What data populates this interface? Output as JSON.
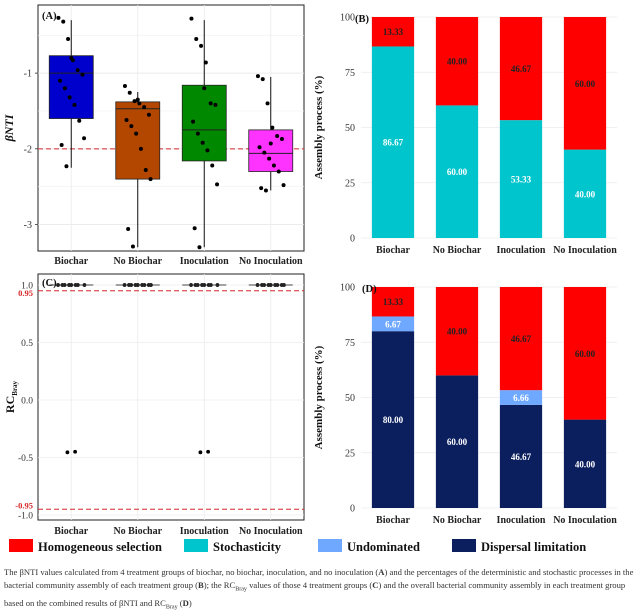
{
  "colors": {
    "homogeneous": "#ff0000",
    "stochasticity": "#00c5cd",
    "undominated": "#6fa8ff",
    "dispersal": "#0b1f5e",
    "dashed": "#d62728"
  },
  "chart_data": [
    {
      "panel": "(A)",
      "type": "box",
      "ylabel": "βNTI",
      "categories": [
        "Biochar",
        "No Biochar",
        "Inoculation",
        "No Inoculation"
      ],
      "yticks": [
        "-1",
        "-2",
        "-3"
      ],
      "ylim": [
        -3.35,
        -0.1
      ],
      "reference_line": -2,
      "box_colors": [
        "#0000cc",
        "#b34700",
        "#008800",
        "#ff33ff"
      ],
      "boxes": [
        {
          "q1": -1.6,
          "median": -1.0,
          "q3": -0.77,
          "whisker_low": -2.25,
          "whisker_high": -0.3
        },
        {
          "q1": -2.4,
          "median": -1.47,
          "q3": -1.38,
          "whisker_low": -3.3,
          "whisker_high": -1.25
        },
        {
          "q1": -2.16,
          "median": -1.75,
          "q3": -1.16,
          "whisker_low": -3.3,
          "whisker_high": -0.3
        },
        {
          "q1": -2.3,
          "median": -2.06,
          "q3": -1.75,
          "whisker_low": -2.55,
          "whisker_high": -1.05
        }
      ],
      "points": [
        [
          -0.27,
          -0.32,
          -0.55,
          -0.83,
          -0.96,
          -1.02,
          -1.1,
          -1.2,
          -1.32,
          -1.42,
          -1.63,
          -1.86,
          -1.95,
          -2.23,
          -0.8
        ],
        [
          -1.17,
          -1.26,
          -1.37,
          -1.4,
          -1.45,
          -1.55,
          -1.62,
          -1.7,
          -1.8,
          -2.0,
          -2.28,
          -2.4,
          -3.06,
          -3.29,
          -1.35
        ],
        [
          -0.28,
          -0.55,
          -0.64,
          -0.86,
          -1.4,
          -1.42,
          -1.64,
          -1.8,
          -1.92,
          -2.02,
          -2.22,
          -2.47,
          -3.05,
          -3.3,
          -1.2
        ],
        [
          -1.04,
          -1.08,
          -1.4,
          -1.72,
          -1.83,
          -1.87,
          -1.98,
          -2.05,
          -2.13,
          -2.22,
          -2.3,
          -2.48,
          -2.52,
          -2.55,
          -1.93
        ]
      ]
    },
    {
      "panel": "(B)",
      "type": "stacked-bar",
      "ylabel": "Assembly process (%)",
      "categories": [
        "Biochar",
        "No Biochar",
        "Inoculation",
        "No Inoculation"
      ],
      "ylim": [
        0,
        100
      ],
      "yticks": [
        "0",
        "25",
        "50",
        "75",
        "100"
      ],
      "series": [
        {
          "name": "Stochasticity",
          "values": [
            86.67,
            60.0,
            53.33,
            40.0
          ],
          "labels": [
            "86.67",
            "60.00",
            "53.33",
            "40.00"
          ]
        },
        {
          "name": "Homogeneous selection",
          "values": [
            13.33,
            40.0,
            46.67,
            60.0
          ],
          "labels": [
            "13.33",
            "40.00",
            "46.67",
            "60.00"
          ]
        }
      ]
    },
    {
      "panel": "(C)",
      "type": "scatter",
      "ylabel": "RC",
      "ylabel_sub": "Bray",
      "categories": [
        "Biochar",
        "No Biochar",
        "Inoculation",
        "No Inoculation"
      ],
      "ylim": [
        -1.0,
        1.0
      ],
      "yticks": [
        {
          "value": 1.0,
          "label": "1.0",
          "red": false
        },
        {
          "value": 0.95,
          "label": "0.95",
          "red": true
        },
        {
          "value": 0.5,
          "label": "0.5",
          "red": false
        },
        {
          "value": 0.0,
          "label": "0.0",
          "red": false
        },
        {
          "value": -0.5,
          "label": "-0.5",
          "red": false
        },
        {
          "value": -0.95,
          "label": "-0.95",
          "red": true
        },
        {
          "value": -1.0,
          "label": "-1.0",
          "red": false
        }
      ],
      "reference_lines": [
        0.95,
        -0.95
      ],
      "points": [
        [
          1.0,
          1.0,
          1.0,
          1.0,
          1.0,
          1.0,
          1.0,
          1.0,
          -0.45,
          -0.455
        ],
        [
          1.0,
          1.0,
          1.0,
          1.0,
          1.0,
          1.0,
          1.0,
          1.0,
          1.0
        ],
        [
          1.0,
          1.0,
          1.0,
          1.0,
          1.0,
          1.0,
          1.0,
          1.0,
          -0.45,
          -0.455
        ],
        [
          1.0,
          1.0,
          1.0,
          1.0,
          1.0,
          1.0,
          1.0,
          1.0,
          1.0
        ]
      ]
    },
    {
      "panel": "(D)",
      "type": "stacked-bar",
      "ylabel": "Assembly process (%)",
      "categories": [
        "Biochar",
        "No Biochar",
        "Inoculation",
        "No Inoculation"
      ],
      "ylim": [
        0,
        100
      ],
      "yticks": [
        "0",
        "25",
        "50",
        "75",
        "100"
      ],
      "series": [
        {
          "name": "Dispersal limitation",
          "values": [
            80.0,
            60.0,
            46.67,
            40.0
          ],
          "labels": [
            "80.00",
            "60.00",
            "46.67",
            "40.00"
          ]
        },
        {
          "name": "Undominated",
          "values": [
            6.67,
            0,
            6.66,
            0
          ],
          "labels": [
            "6.67",
            "",
            "6.66",
            ""
          ]
        },
        {
          "name": "Homogeneous selection",
          "values": [
            13.33,
            40.0,
            46.67,
            60.0
          ],
          "labels": [
            "13.33",
            "40.00",
            "46.67",
            "60.00"
          ]
        }
      ]
    }
  ],
  "legend": [
    {
      "label": "Homogeneous selection",
      "color": "#ff0000"
    },
    {
      "label": "Stochasticity",
      "color": "#00c5cd"
    },
    {
      "label": "Undominated",
      "color": "#6fa8ff"
    },
    {
      "label": "Dispersal limitation",
      "color": "#0b1f5e"
    }
  ],
  "caption": {
    "part1": "The βNTI values calculated from 4 treatment groups of biochar, no biochar, inoculation, and no inoculation (",
    "a": "A",
    "part2": ") and the percentages of the deterministic and stochastic processes in the bacterial community assembly of each treatment group (",
    "b": "B",
    "part3": "); the RC",
    "sub1": "Bray",
    "part4": " values of those 4 treatment groups (",
    "c": "C",
    "part5": ") and the overall bacterial community assembly in each treatment group based on the combined results of βNTI and RC",
    "sub2": "Bray",
    "part6": " (",
    "d": "D",
    "part7": ")"
  }
}
